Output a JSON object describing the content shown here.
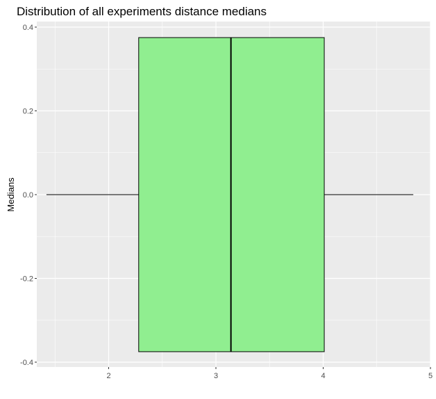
{
  "chart_data": {
    "type": "boxplot",
    "title": "Distribution of all experiments distance medians",
    "xlabel": "",
    "ylabel": "Medians",
    "orientation": "horizontal",
    "xlim": [
      1.33,
      5.0
    ],
    "ylim": [
      -0.4,
      0.4
    ],
    "x_ticks": [
      2,
      3,
      4,
      5
    ],
    "x_tick_labels": [
      "2",
      "3",
      "4",
      "5"
    ],
    "y_ticks": [
      -0.4,
      -0.2,
      0.0,
      0.2,
      0.4
    ],
    "y_tick_labels": [
      "-0.4",
      "-0.2",
      "0.0",
      "0.2",
      "0.4"
    ],
    "grid": true,
    "box": {
      "whisker_low": 1.42,
      "q1": 2.28,
      "median": 3.14,
      "q3": 4.01,
      "whisker_high": 4.84
    },
    "box_vertical_extent": [
      -0.375,
      0.375
    ],
    "fill_color": "#90ee90",
    "panel_color": "#ebebeb",
    "grid_color": "#ffffff"
  }
}
